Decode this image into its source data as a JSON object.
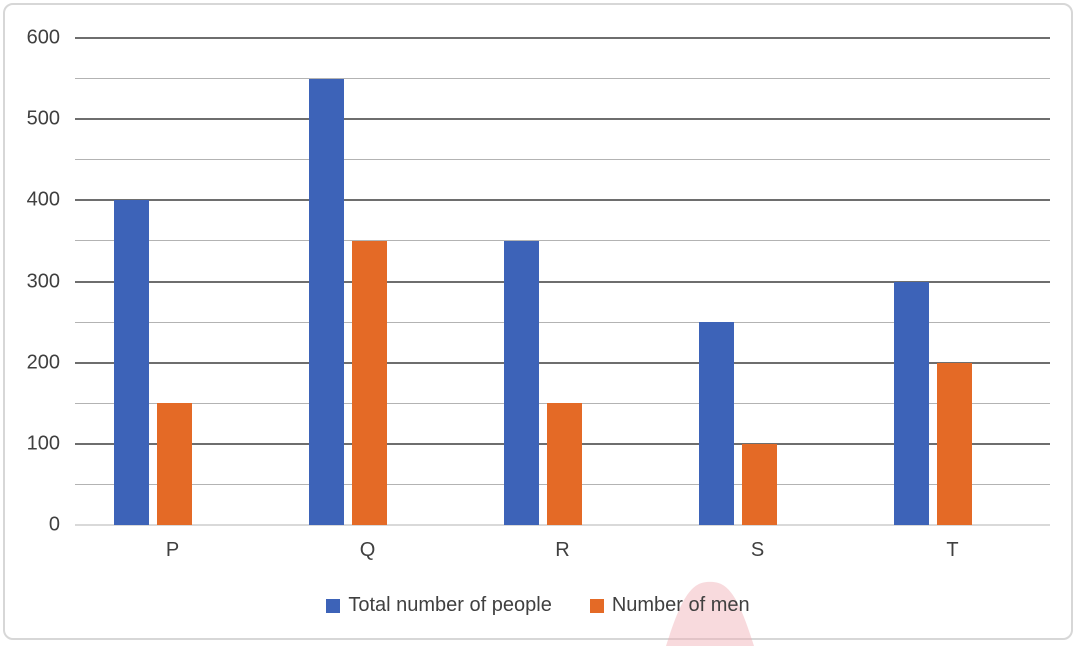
{
  "chart_data": {
    "type": "bar",
    "categories": [
      "P",
      "Q",
      "R",
      "S",
      "T"
    ],
    "series": [
      {
        "name": "Total number of people",
        "color": "#3D63B8",
        "values": [
          400,
          550,
          350,
          250,
          300
        ]
      },
      {
        "name": "Number of men",
        "color": "#E46A26",
        "values": [
          150,
          350,
          150,
          100,
          200
        ]
      }
    ],
    "title": "",
    "xlabel": "",
    "ylabel": "",
    "ylim": [
      0,
      600
    ],
    "y_major_step": 100,
    "y_minor_step": 50,
    "y_ticks": [
      0,
      100,
      200,
      300,
      400,
      500,
      600
    ],
    "grid": "on",
    "legend_position": "bottom"
  },
  "colors": {
    "axis_text": "#404040",
    "major_gridline": "#6E6E6E",
    "minor_gridline": "#B3B3B3",
    "zero_line": "#D9D9D9",
    "frame_border": "#D7D7D7",
    "watermark_pink": "#F8DADD"
  }
}
